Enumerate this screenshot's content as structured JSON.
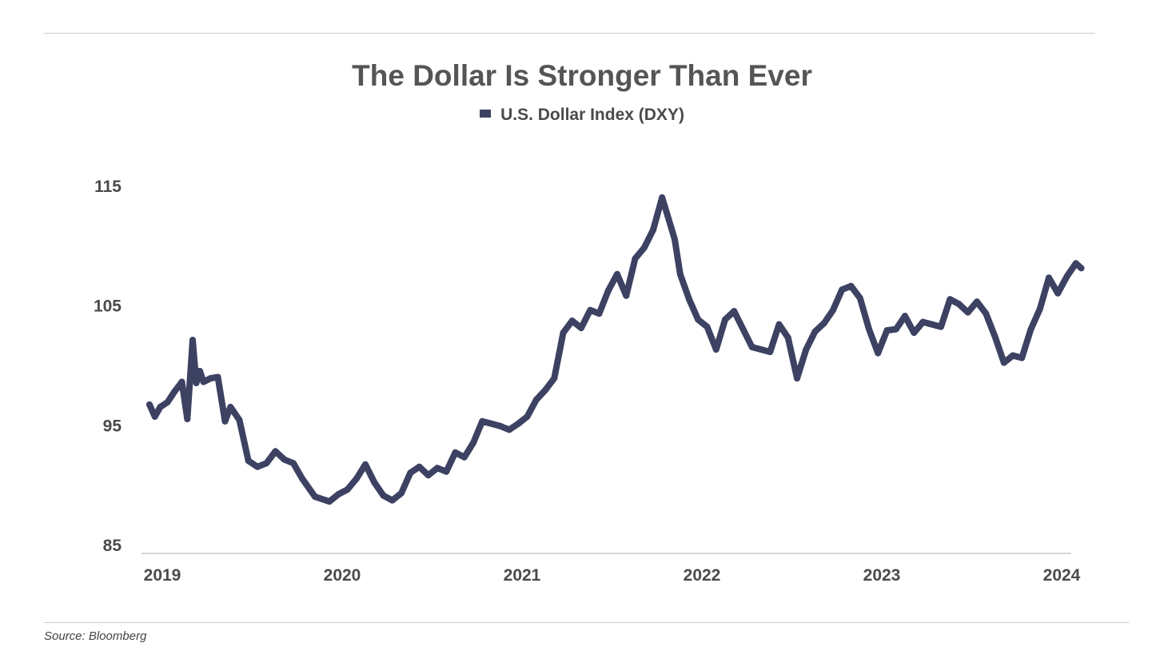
{
  "chart_data": {
    "type": "line",
    "title": "The Dollar Is Stronger Than Ever",
    "xlabel": "",
    "ylabel": "",
    "ylim": [
      85,
      115
    ],
    "yticks": [
      "115",
      "105",
      "95",
      "85"
    ],
    "ytick_values": [
      115,
      105,
      95,
      85
    ],
    "xticks": [
      "2019",
      "2020",
      "2021",
      "2022",
      "2023",
      "2024"
    ],
    "xtick_values": [
      2019,
      2020,
      2021,
      2022,
      2023,
      2024
    ],
    "xlim": [
      2019.0,
      2024.2
    ],
    "legend": "top-center",
    "grid": false,
    "series": [
      {
        "name": "U.S. Dollar Index (DXY)",
        "color": "#3d4263",
        "x": [
          2019.0,
          2019.03,
          2019.06,
          2019.1,
          2019.14,
          2019.18,
          2019.21,
          2019.24,
          2019.26,
          2019.28,
          2019.3,
          2019.34,
          2019.38,
          2019.42,
          2019.45,
          2019.5,
          2019.55,
          2019.6,
          2019.65,
          2019.7,
          2019.75,
          2019.8,
          2019.85,
          2019.92,
          2020.0,
          2020.05,
          2020.1,
          2020.15,
          2020.2,
          2020.25,
          2020.3,
          2020.35,
          2020.4,
          2020.45,
          2020.5,
          2020.55,
          2020.6,
          2020.65,
          2020.7,
          2020.75,
          2020.8,
          2020.85,
          2020.9,
          2020.95,
          2021.0,
          2021.05,
          2021.1,
          2021.15,
          2021.2,
          2021.25,
          2021.3,
          2021.35,
          2021.4,
          2021.45,
          2021.5,
          2021.55,
          2021.6,
          2021.65,
          2021.7,
          2021.75,
          2021.8,
          2021.85,
          2021.88,
          2021.92,
          2021.95,
          2022.0,
          2022.05,
          2022.1,
          2022.15,
          2022.2,
          2022.25,
          2022.3,
          2022.35,
          2022.4,
          2022.45,
          2022.5,
          2022.55,
          2022.6,
          2022.65,
          2022.7,
          2022.75,
          2022.8,
          2022.85,
          2022.9,
          2022.95,
          2023.0,
          2023.05,
          2023.1,
          2023.15,
          2023.2,
          2023.25,
          2023.3,
          2023.35,
          2023.4,
          2023.45,
          2023.5,
          2023.55,
          2023.6,
          2023.65,
          2023.7,
          2023.75,
          2023.8,
          2023.85,
          2023.9,
          2023.95,
          2024.0,
          2024.05,
          2024.1,
          2024.15,
          2024.18
        ],
        "values": [
          96.7,
          95.7,
          96.5,
          96.9,
          97.8,
          98.6,
          95.5,
          102.1,
          98.5,
          99.5,
          98.6,
          98.9,
          99.0,
          95.3,
          96.5,
          95.4,
          92.0,
          91.5,
          91.8,
          92.8,
          92.1,
          91.8,
          90.5,
          89.0,
          88.6,
          89.2,
          89.6,
          90.5,
          91.7,
          90.2,
          89.1,
          88.7,
          89.3,
          91.0,
          91.5,
          90.8,
          91.4,
          91.1,
          92.7,
          92.3,
          93.5,
          95.3,
          95.1,
          94.9,
          94.6,
          95.1,
          95.7,
          97.1,
          97.9,
          98.9,
          102.7,
          103.7,
          103.1,
          104.6,
          104.3,
          106.2,
          107.6,
          105.8,
          108.9,
          109.8,
          111.3,
          114.0,
          112.5,
          110.5,
          107.6,
          105.5,
          103.8,
          103.2,
          101.3,
          103.8,
          104.5,
          103.0,
          101.5,
          101.3,
          101.1,
          103.4,
          102.3,
          98.9,
          101.3,
          102.8,
          103.5,
          104.6,
          106.3,
          106.6,
          105.6,
          103.0,
          101.0,
          102.9,
          103.0,
          104.1,
          102.7,
          103.6,
          103.4,
          103.2,
          105.5,
          105.1,
          104.4,
          105.3,
          104.3,
          102.4,
          100.2,
          100.8,
          100.6,
          103.0,
          104.7,
          107.3,
          106.0,
          107.4,
          108.5,
          108.1
        ]
      }
    ]
  },
  "source": "Source: Bloomberg"
}
